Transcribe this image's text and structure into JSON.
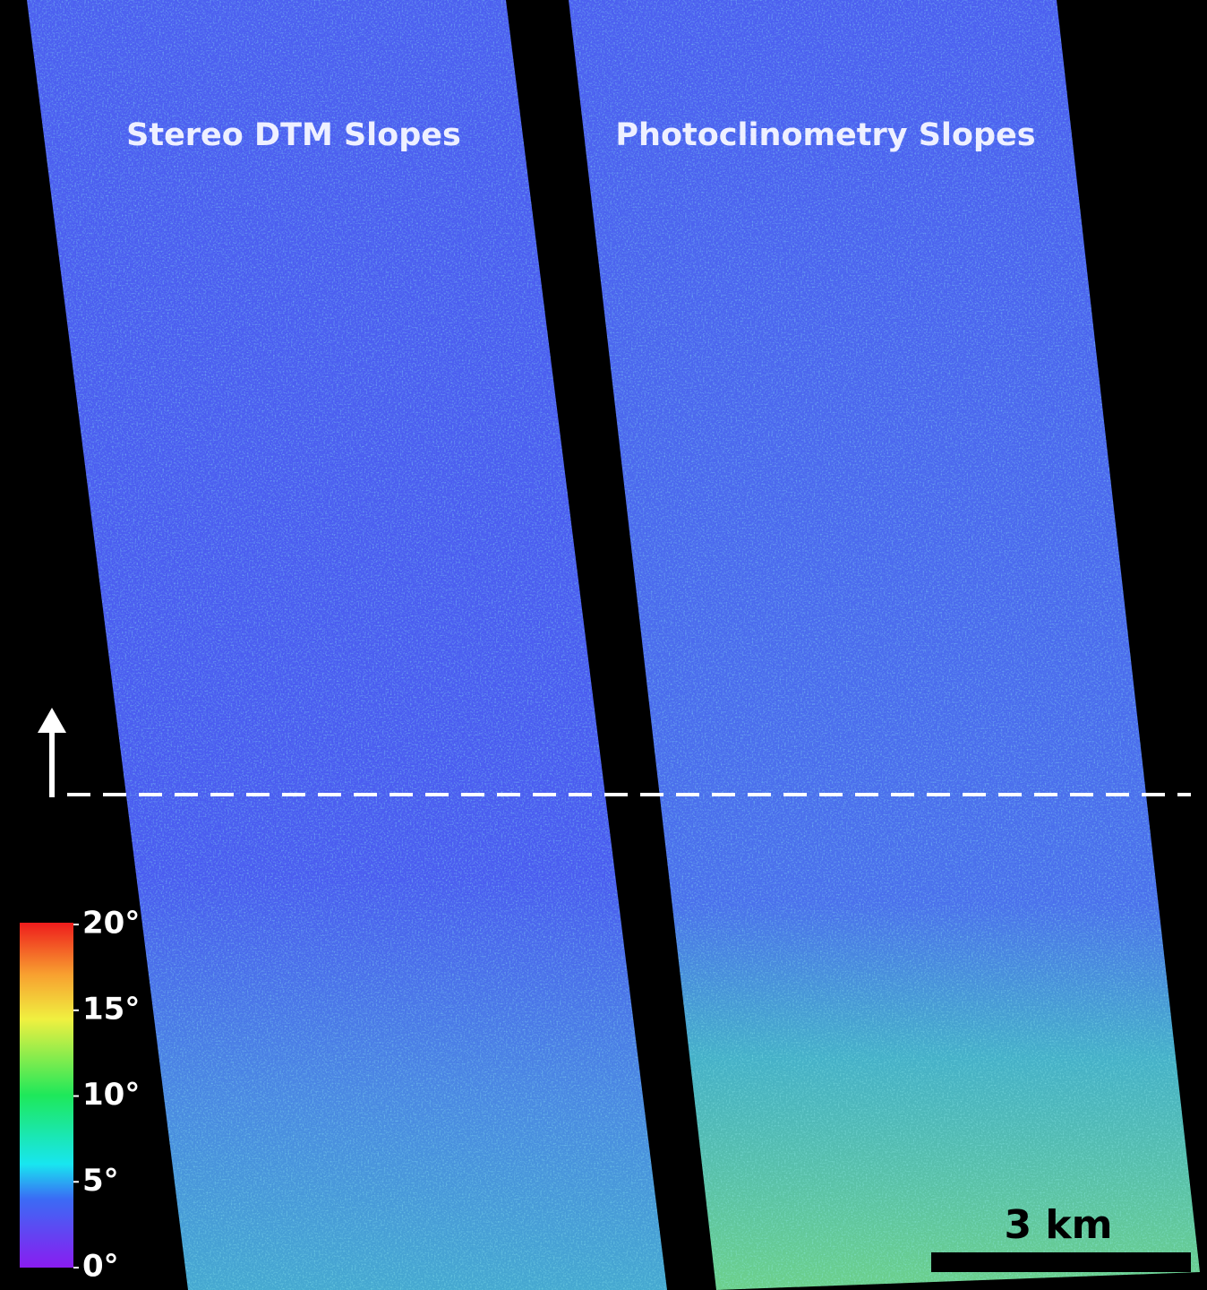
{
  "panels": [
    {
      "title": "Stereo DTM Slopes"
    },
    {
      "title": "Photoclinometry Slopes"
    }
  ],
  "colorbar": {
    "range": [
      0,
      20
    ],
    "ticks": [
      {
        "value": 0,
        "label": "0°"
      },
      {
        "value": 5,
        "label": "5°"
      },
      {
        "value": 10,
        "label": "10°"
      },
      {
        "value": 15,
        "label": "15°"
      },
      {
        "value": 20,
        "label": "20°"
      }
    ]
  },
  "scale_bar": {
    "label": "3 km"
  }
}
